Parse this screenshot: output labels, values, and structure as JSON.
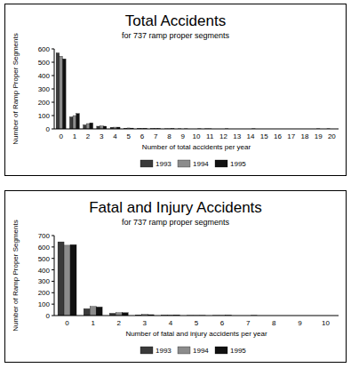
{
  "chart_data": [
    {
      "type": "bar",
      "title": "Total Accidents",
      "subtitle": "for 737 ramp proper segments",
      "x_label": "Number of total accidents per year",
      "y_label": "Number of Ramp Proper Segments",
      "categories": [
        "0",
        "1",
        "2",
        "3",
        "4",
        "5",
        "6",
        "7",
        "8",
        "9",
        "10",
        "11",
        "12",
        "13",
        "14",
        "15",
        "16",
        "17",
        "18",
        "19",
        "20"
      ],
      "series": [
        {
          "name": "1993",
          "color": "#3a3a3a",
          "values": [
            570,
            90,
            30,
            20,
            12,
            5,
            4,
            2,
            1,
            1,
            0,
            1,
            0,
            0,
            0,
            0,
            0,
            0,
            0,
            0,
            1
          ]
        },
        {
          "name": "1994",
          "color": "#8c8c8c",
          "values": [
            545,
            100,
            40,
            22,
            13,
            7,
            4,
            3,
            1,
            0,
            0,
            1,
            0,
            0,
            0,
            0,
            0,
            0,
            0,
            1,
            0
          ]
        },
        {
          "name": "1995",
          "color": "#111111",
          "values": [
            525,
            115,
            45,
            20,
            13,
            6,
            4,
            2,
            2,
            1,
            1,
            0,
            1,
            0,
            1,
            0,
            0,
            0,
            0,
            0,
            0
          ]
        }
      ],
      "ylim": [
        0,
        600
      ],
      "yticks": [
        0,
        100,
        200,
        300,
        400,
        500,
        600
      ],
      "grid": false,
      "legend": "bottom"
    },
    {
      "type": "bar",
      "title": "Fatal and Injury Accidents",
      "subtitle": "for 737 ramp proper segments",
      "x_label": "Number of fatal and injury accidents per year",
      "y_label": "Number of Ramp Proper Segments",
      "categories": [
        "0",
        "1",
        "2",
        "3",
        "4",
        "5",
        "6",
        "7",
        "8",
        "9",
        "10"
      ],
      "series": [
        {
          "name": "1993",
          "color": "#3a3a3a",
          "values": [
            645,
            60,
            20,
            6,
            3,
            1,
            1,
            0,
            0,
            0,
            0
          ]
        },
        {
          "name": "1994",
          "color": "#8c8c8c",
          "values": [
            615,
            80,
            25,
            10,
            4,
            1,
            1,
            0,
            0,
            0,
            0
          ]
        },
        {
          "name": "1995",
          "color": "#111111",
          "values": [
            620,
            75,
            25,
            8,
            5,
            1,
            2,
            1,
            0,
            0,
            0
          ]
        }
      ],
      "ylim": [
        0,
        700
      ],
      "yticks": [
        0,
        100,
        200,
        300,
        400,
        500,
        600,
        700
      ],
      "grid": false,
      "legend": "bottom"
    }
  ]
}
